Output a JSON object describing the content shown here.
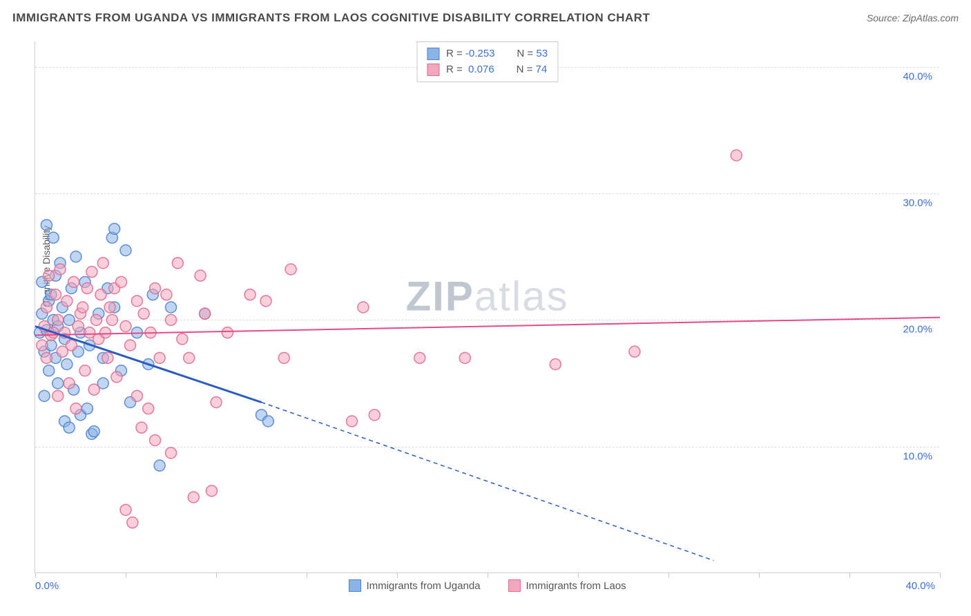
{
  "header": {
    "title": "IMMIGRANTS FROM UGANDA VS IMMIGRANTS FROM LAOS COGNITIVE DISABILITY CORRELATION CHART",
    "source": "Source: ZipAtlas.com"
  },
  "chart": {
    "type": "scatter",
    "ylabel": "Cognitive Disability",
    "watermark": {
      "part1": "ZIP",
      "part2": "atlas"
    },
    "xlim": [
      0,
      40
    ],
    "ylim": [
      0,
      42
    ],
    "x_axis_labels": {
      "min": "0.0%",
      "max": "40.0%"
    },
    "y_ticks": [
      {
        "value": 10,
        "label": "10.0%"
      },
      {
        "value": 20,
        "label": "20.0%"
      },
      {
        "value": 30,
        "label": "30.0%"
      },
      {
        "value": 40,
        "label": "40.0%"
      }
    ],
    "x_tick_positions": [
      0,
      4,
      8,
      12,
      16,
      20,
      24,
      28,
      32,
      36,
      40
    ],
    "grid_color": "#dcdcdc",
    "background_color": "#ffffff",
    "marker_radius": 8,
    "marker_opacity": 0.55,
    "marker_stroke_opacity": 0.9,
    "series": [
      {
        "name": "Immigrants from Uganda",
        "color_fill": "#8ab3e8",
        "color_stroke": "#4f84d1",
        "r_label": "R =",
        "r_value": "-0.253",
        "n_label": "N =",
        "n_value": "53",
        "trend": {
          "x1": 0,
          "y1": 19.5,
          "x2": 10,
          "y2": 13.5,
          "x2_ext": 30,
          "y2_ext": 1.0,
          "color": "#2a5bc5",
          "width": 3
        },
        "points": [
          [
            0.2,
            19.0
          ],
          [
            0.3,
            20.5
          ],
          [
            0.3,
            23.0
          ],
          [
            0.4,
            17.5
          ],
          [
            0.4,
            14.0
          ],
          [
            0.5,
            27.5
          ],
          [
            0.5,
            19.2
          ],
          [
            0.6,
            21.5
          ],
          [
            0.6,
            16.0
          ],
          [
            0.7,
            22.0
          ],
          [
            0.7,
            18.0
          ],
          [
            0.8,
            26.5
          ],
          [
            0.8,
            20.0
          ],
          [
            0.9,
            23.5
          ],
          [
            0.9,
            17.0
          ],
          [
            1.0,
            19.5
          ],
          [
            1.0,
            15.0
          ],
          [
            1.1,
            24.5
          ],
          [
            1.2,
            21.0
          ],
          [
            1.3,
            18.5
          ],
          [
            1.3,
            12.0
          ],
          [
            1.4,
            16.5
          ],
          [
            1.5,
            20.0
          ],
          [
            1.5,
            11.5
          ],
          [
            1.6,
            22.5
          ],
          [
            1.7,
            14.5
          ],
          [
            1.8,
            25.0
          ],
          [
            1.9,
            17.5
          ],
          [
            2.0,
            19.0
          ],
          [
            2.0,
            12.5
          ],
          [
            2.2,
            23.0
          ],
          [
            2.3,
            13.0
          ],
          [
            2.4,
            18.0
          ],
          [
            2.5,
            11.0
          ],
          [
            2.6,
            11.2
          ],
          [
            2.8,
            20.5
          ],
          [
            3.0,
            15.0
          ],
          [
            3.2,
            22.5
          ],
          [
            3.4,
            26.5
          ],
          [
            3.5,
            27.2
          ],
          [
            3.5,
            21.0
          ],
          [
            3.8,
            16.0
          ],
          [
            4.0,
            25.5
          ],
          [
            4.2,
            13.5
          ],
          [
            4.5,
            19.0
          ],
          [
            5.0,
            16.5
          ],
          [
            5.2,
            22.0
          ],
          [
            5.5,
            8.5
          ],
          [
            6.0,
            21.0
          ],
          [
            7.5,
            20.5
          ],
          [
            10.0,
            12.5
          ],
          [
            10.3,
            12.0
          ],
          [
            3.0,
            17.0
          ]
        ]
      },
      {
        "name": "Immigrants from Laos",
        "color_fill": "#f2a8bc",
        "color_stroke": "#e16b90",
        "r_label": "R =",
        "r_value": "0.076",
        "n_label": "N =",
        "n_value": "74",
        "trend": {
          "x1": 0,
          "y1": 18.8,
          "x2": 40,
          "y2": 20.2,
          "color": "#e84a87",
          "width": 2
        },
        "points": [
          [
            0.3,
            18.0
          ],
          [
            0.4,
            19.5
          ],
          [
            0.5,
            21.0
          ],
          [
            0.5,
            17.0
          ],
          [
            0.6,
            23.5
          ],
          [
            0.7,
            18.8
          ],
          [
            0.8,
            19.0
          ],
          [
            0.9,
            22.0
          ],
          [
            1.0,
            20.0
          ],
          [
            1.0,
            14.0
          ],
          [
            1.1,
            24.0
          ],
          [
            1.2,
            17.5
          ],
          [
            1.3,
            19.0
          ],
          [
            1.4,
            21.5
          ],
          [
            1.5,
            15.0
          ],
          [
            1.6,
            18.0
          ],
          [
            1.7,
            23.0
          ],
          [
            1.8,
            13.0
          ],
          [
            1.9,
            19.5
          ],
          [
            2.0,
            20.5
          ],
          [
            2.1,
            21.0
          ],
          [
            2.2,
            16.0
          ],
          [
            2.3,
            22.5
          ],
          [
            2.4,
            19.0
          ],
          [
            2.5,
            23.8
          ],
          [
            2.6,
            14.5
          ],
          [
            2.7,
            20.0
          ],
          [
            2.8,
            18.5
          ],
          [
            2.9,
            22.0
          ],
          [
            3.0,
            24.5
          ],
          [
            3.1,
            19.0
          ],
          [
            3.2,
            17.0
          ],
          [
            3.3,
            21.0
          ],
          [
            3.4,
            20.0
          ],
          [
            3.5,
            22.5
          ],
          [
            3.6,
            15.5
          ],
          [
            3.8,
            23.0
          ],
          [
            4.0,
            19.5
          ],
          [
            4.2,
            18.0
          ],
          [
            4.3,
            4.0
          ],
          [
            4.5,
            14.0
          ],
          [
            4.5,
            21.5
          ],
          [
            4.7,
            11.5
          ],
          [
            4.8,
            20.5
          ],
          [
            5.0,
            13.0
          ],
          [
            5.1,
            19.0
          ],
          [
            5.3,
            10.5
          ],
          [
            5.3,
            22.5
          ],
          [
            5.5,
            17.0
          ],
          [
            5.8,
            22.0
          ],
          [
            6.0,
            9.5
          ],
          [
            6.0,
            20.0
          ],
          [
            6.3,
            24.5
          ],
          [
            6.5,
            18.5
          ],
          [
            6.8,
            17.0
          ],
          [
            7.0,
            6.0
          ],
          [
            7.3,
            23.5
          ],
          [
            7.5,
            20.5
          ],
          [
            7.8,
            6.5
          ],
          [
            8.0,
            13.5
          ],
          [
            8.5,
            19.0
          ],
          [
            9.5,
            22.0
          ],
          [
            10.2,
            21.5
          ],
          [
            11.0,
            17.0
          ],
          [
            11.3,
            24.0
          ],
          [
            14.0,
            12.0
          ],
          [
            14.5,
            21.0
          ],
          [
            15.0,
            12.5
          ],
          [
            17.0,
            17.0
          ],
          [
            19.0,
            17.0
          ],
          [
            23.0,
            16.5
          ],
          [
            26.5,
            17.5
          ],
          [
            31.0,
            33.0
          ],
          [
            4.0,
            5.0
          ]
        ]
      }
    ],
    "legend_bottom": [
      {
        "label": "Immigrants from Uganda",
        "fill": "#8ab3e8",
        "stroke": "#4f84d1"
      },
      {
        "label": "Immigrants from Laos",
        "fill": "#f2a8bc",
        "stroke": "#e16b90"
      }
    ]
  }
}
